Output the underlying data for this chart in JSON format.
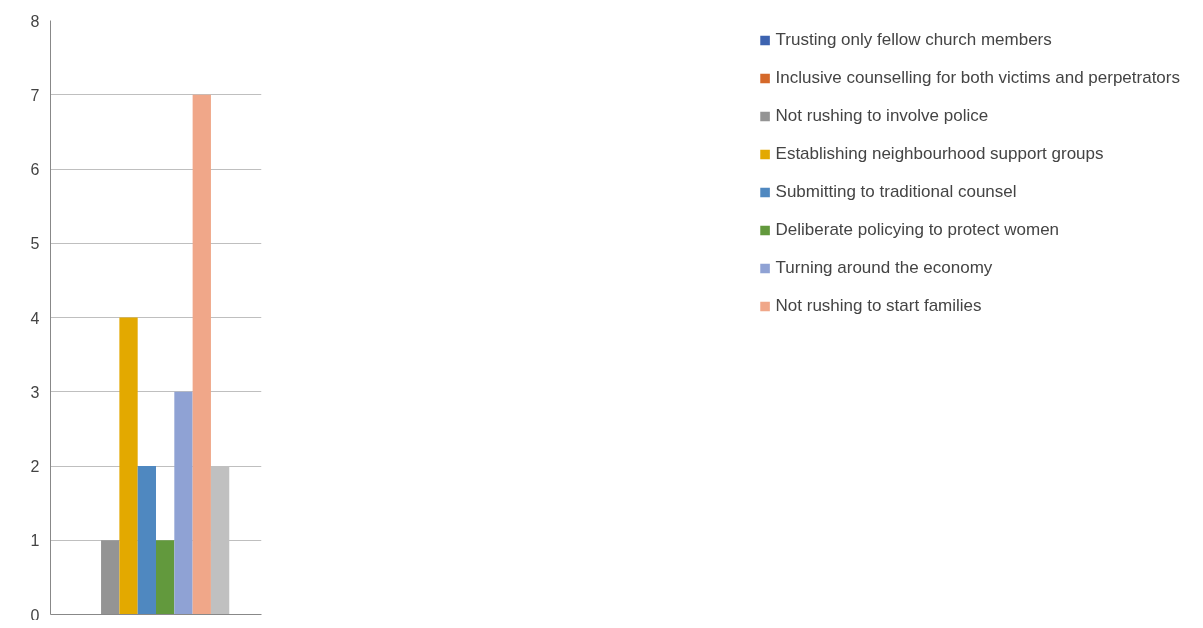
{
  "chart_data": {
    "type": "bar",
    "categories": [
      null
    ],
    "series": [
      {
        "name": "Trusting only fellow church members",
        "color": "#3d63b0",
        "values": [
          0
        ]
      },
      {
        "name": "Inclusive counselling for both victims and perpetrators",
        "color": "#d5692a",
        "values": [
          0
        ]
      },
      {
        "name": "Not rushing to involve police",
        "color": "#949494",
        "values": [
          1
        ]
      },
      {
        "name": "Establishing neighbourhood support groups",
        "color": "#e3a900",
        "values": [
          4
        ]
      },
      {
        "name": "Submitting to traditional counsel",
        "color": "#4f88c0",
        "values": [
          2
        ]
      },
      {
        "name": "Deliberate policying to protect women",
        "color": "#62993d",
        "values": [
          1
        ]
      },
      {
        "name": "Turning around the economy",
        "color": "#8fa2d4",
        "values": [
          3
        ]
      },
      {
        "name": "Not rushing to start families",
        "color": "#f0a789",
        "values": [
          7
        ]
      },
      {
        "color": "#c0c0c0",
        "values": [
          2
        ]
      },
      {
        "color": "#f2c880",
        "values": [
          0
        ]
      }
    ],
    "ylim": [
      0,
      8
    ],
    "yticks": [
      0,
      1,
      2,
      3,
      4,
      5,
      6,
      7,
      8
    ],
    "grid": "y",
    "legend": "right"
  }
}
